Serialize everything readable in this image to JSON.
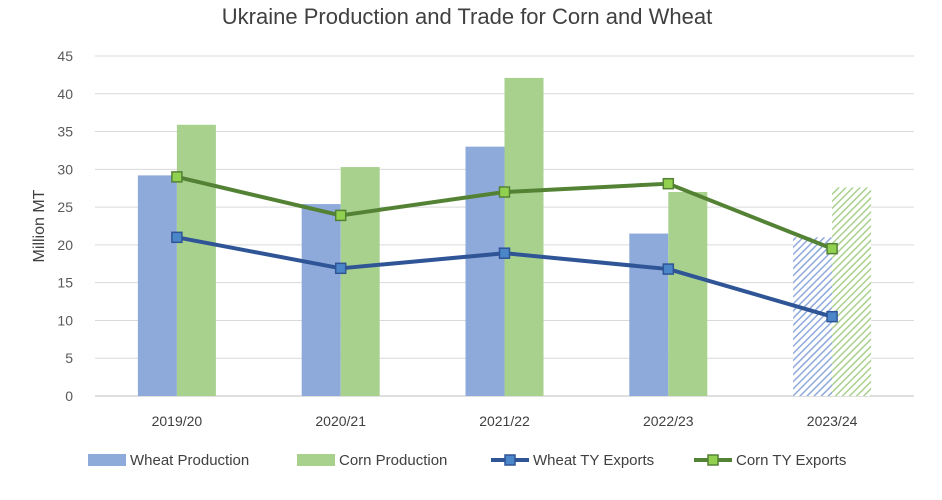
{
  "chart_data": {
    "type": "bar",
    "title": "Ukraine Production and Trade for Corn and Wheat",
    "ylabel": "Million MT",
    "xlabel": "",
    "ylim": [
      0,
      45
    ],
    "yticks": [
      0,
      5,
      10,
      15,
      20,
      25,
      30,
      35,
      40,
      45
    ],
    "grid": true,
    "legend_position": "bottom",
    "categories": [
      "2019/20",
      "2020/21",
      "2021/22",
      "2022/23",
      "2023/24"
    ],
    "forecast_category_index": 4,
    "series": [
      {
        "name": "Wheat Production",
        "kind": "bar",
        "color": "#8eaadb",
        "values": [
          29.2,
          25.4,
          33.0,
          21.5,
          21.0
        ]
      },
      {
        "name": "Corn Production",
        "kind": "bar",
        "color": "#a9d18e",
        "values": [
          35.9,
          30.3,
          42.1,
          27.0,
          27.6
        ]
      },
      {
        "name": "Wheat TY Exports",
        "kind": "line",
        "color": "#2f5597",
        "marker_fill": "#4a86c8",
        "values": [
          21.0,
          16.9,
          18.9,
          16.8,
          10.5
        ]
      },
      {
        "name": "Corn TY Exports",
        "kind": "line",
        "color": "#548235",
        "marker_fill": "#92d050",
        "values": [
          29.0,
          23.9,
          27.0,
          28.1,
          19.5
        ]
      }
    ]
  }
}
